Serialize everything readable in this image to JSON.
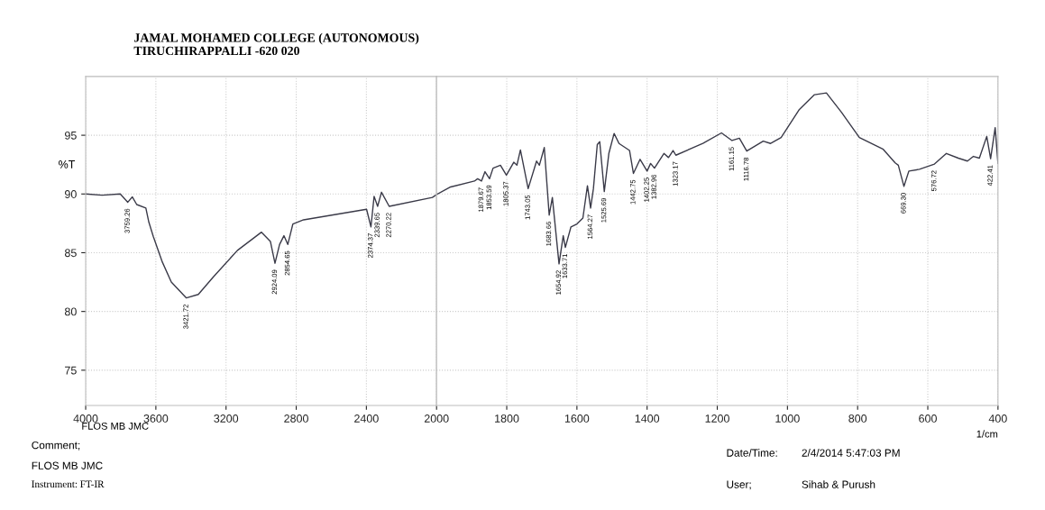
{
  "chart_data": [
    {
      "type": "line",
      "title": "JAMAL MOHAMED COLLEGE (AUTONOMOUS)\nTIRUCHIRAPPALLI -620 020",
      "ylabel": "%T",
      "xlim": [
        4000,
        2000
      ],
      "xticks": [
        4000,
        3600,
        3200,
        2800,
        2400,
        2000
      ],
      "ylim": [
        72,
        100
      ],
      "yticks": [
        75,
        80,
        85,
        90,
        95
      ],
      "grid": true,
      "marker": "none",
      "line_style": "solid",
      "x": [
        4000,
        3906,
        3803,
        3760,
        3734,
        3709,
        3657,
        3640,
        3615,
        3563,
        3512,
        3426,
        3358,
        3272,
        3135,
        2998,
        2947,
        2921,
        2895,
        2870,
        2848,
        2819,
        2758,
        2399,
        2374,
        2356,
        2336,
        2314,
        2270,
        2024,
        2000
      ],
      "series": [
        {
          "color": "#3a3a48",
          "values": [
            90.0,
            89.9,
            90.0,
            89.3,
            89.75,
            89.1,
            88.8,
            87.6,
            86.4,
            84.2,
            82.5,
            81.15,
            81.45,
            82.95,
            85.2,
            86.75,
            85.95,
            84.1,
            85.7,
            86.45,
            85.7,
            87.45,
            87.8,
            88.7,
            87.2,
            89.8,
            88.95,
            90.15,
            88.95,
            89.7,
            89.95
          ]
        }
      ],
      "annotations": [
        "FLOS MB JMC",
        "Comment;",
        "FLOS MB JMC",
        "Instrument: FT-IR",
        "Date/Time:",
        "2/4/2014 5:47:03 PM",
        "User;",
        "Sihab & Purush",
        {
          "text": "3759.26",
          "x": 3760,
          "y": 89.3
        },
        {
          "text": "3421.72",
          "x": 3426,
          "y": 81.15
        },
        {
          "text": "2924.09",
          "x": 2921,
          "y": 84.1
        },
        {
          "text": "2854.65",
          "x": 2848,
          "y": 85.7
        },
        {
          "text": "2374.37",
          "x": 2374,
          "y": 87.2
        },
        {
          "text": "2339.65",
          "x": 2336,
          "y": 88.95
        },
        {
          "text": "2270.22",
          "x": 2270,
          "y": 88.95
        }
      ]
    },
    {
      "type": "line",
      "xlabel": "1/cm",
      "tick_labels": "x",
      "xlim": [
        2000,
        400
      ],
      "xticks": [
        1800,
        1600,
        1400,
        1200,
        1000,
        800,
        600,
        400
      ],
      "ylim": [
        72,
        100
      ],
      "yticks": [
        75,
        80,
        85,
        90,
        95
      ],
      "grid": true,
      "marker": "none",
      "line_style": "solid",
      "x": [
        2000,
        1960,
        1892,
        1883,
        1872,
        1862,
        1849,
        1839,
        1818,
        1801,
        1780,
        1771,
        1761,
        1739,
        1715,
        1707,
        1693,
        1679,
        1670,
        1651,
        1639,
        1633,
        1617,
        1600,
        1583,
        1570,
        1561,
        1553,
        1542,
        1535,
        1522,
        1509,
        1494,
        1480,
        1450,
        1439,
        1420,
        1400,
        1390,
        1379,
        1352,
        1339,
        1326,
        1318,
        1241,
        1188,
        1158,
        1137,
        1116,
        1069,
        1048,
        1018,
        966,
        923,
        889,
        846,
        795,
        727,
        693,
        684,
        668,
        654,
        624,
        581,
        547,
        513,
        487,
        470,
        453,
        432,
        421,
        408,
        400
      ],
      "series": [
        {
          "color": "#3a3a48",
          "values": [
            89.95,
            90.6,
            91.1,
            91.3,
            91.1,
            91.9,
            91.3,
            92.2,
            92.45,
            91.6,
            92.7,
            92.45,
            93.75,
            90.45,
            92.8,
            92.45,
            93.95,
            88.2,
            89.7,
            84.05,
            86.45,
            85.45,
            87.2,
            87.45,
            87.95,
            90.7,
            88.8,
            90.45,
            94.2,
            94.45,
            90.2,
            93.45,
            95.15,
            94.3,
            93.7,
            91.75,
            92.95,
            91.95,
            92.6,
            92.2,
            93.45,
            93.1,
            93.7,
            93.3,
            94.3,
            95.2,
            94.55,
            94.75,
            93.65,
            94.5,
            94.3,
            94.8,
            97.2,
            98.45,
            98.6,
            96.95,
            94.8,
            93.8,
            92.65,
            92.45,
            90.65,
            91.95,
            92.1,
            92.55,
            93.45,
            93.05,
            92.8,
            93.2,
            93.05,
            94.9,
            93.0,
            95.65,
            92.6
          ]
        }
      ],
      "annotations": [
        {
          "text": "1879.67",
          "x": 1872,
          "y": 91.1
        },
        {
          "text": "1853.59",
          "x": 1849,
          "y": 91.3
        },
        {
          "text": "1805.37",
          "x": 1801,
          "y": 91.6
        },
        {
          "text": "1743.05",
          "x": 1739,
          "y": 90.45
        },
        {
          "text": "1683.66",
          "x": 1679,
          "y": 88.2
        },
        {
          "text": "1654.92",
          "x": 1651,
          "y": 84.05
        },
        {
          "text": "1633.71",
          "x": 1633,
          "y": 85.45
        },
        {
          "text": "1564.27",
          "x": 1561,
          "y": 88.8
        },
        {
          "text": "1525.69",
          "x": 1522,
          "y": 90.2
        },
        {
          "text": "1442.75",
          "x": 1439,
          "y": 91.75
        },
        {
          "text": "1402.25",
          "x": 1400,
          "y": 91.95
        },
        {
          "text": "1382.96",
          "x": 1379,
          "y": 92.2
        },
        {
          "text": "1323.17",
          "x": 1318,
          "y": 93.3
        },
        {
          "text": "1161.15",
          "x": 1158,
          "y": 94.55
        },
        {
          "text": "1116.78",
          "x": 1116,
          "y": 93.65
        },
        {
          "text": "669.30",
          "x": 668,
          "y": 90.65
        },
        {
          "text": "576.72",
          "x": 581,
          "y": 92.55
        },
        {
          "text": "422.41",
          "x": 421,
          "y": 93.0
        }
      ]
    }
  ]
}
